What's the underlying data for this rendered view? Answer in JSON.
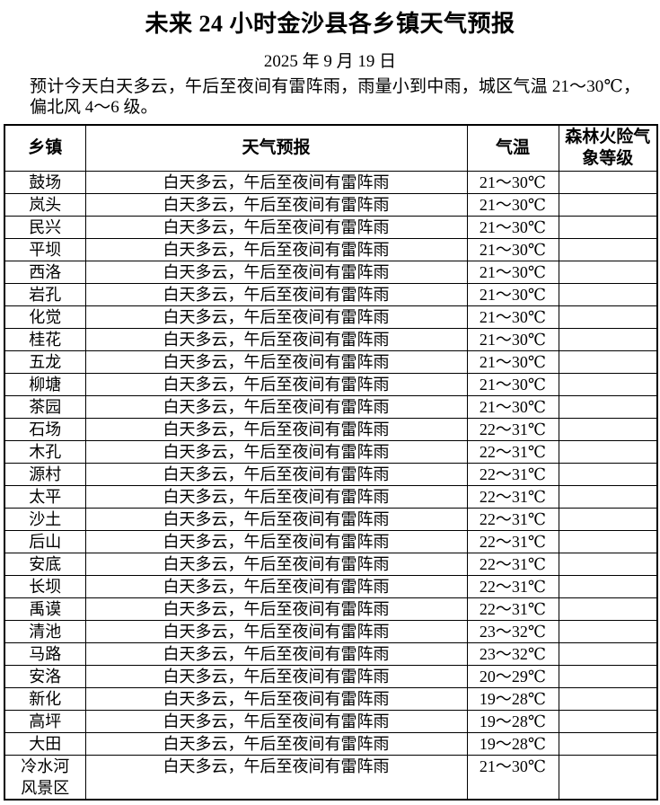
{
  "header": {
    "title": "未来 24 小时金沙县各乡镇天气预报",
    "date": "2025 年 9 月 19 日",
    "summary": "预计今天白天多云，午后至夜间有雷阵雨，雨量小到中雨，城区气温 21～30℃，偏北风 4～6 级。"
  },
  "colors": {
    "text": "#000000",
    "background": "#ffffff",
    "border": "#000000"
  },
  "table": {
    "headers": [
      "乡镇",
      "天气预报",
      "气温",
      "森林火险气象等级"
    ],
    "rows": [
      {
        "town": "鼓场",
        "forecast": "白天多云，午后至夜间有雷阵雨",
        "temp": "21～30℃",
        "fire": ""
      },
      {
        "town": "岚头",
        "forecast": "白天多云，午后至夜间有雷阵雨",
        "temp": "21～30℃",
        "fire": ""
      },
      {
        "town": "民兴",
        "forecast": "白天多云，午后至夜间有雷阵雨",
        "temp": "21～30℃",
        "fire": ""
      },
      {
        "town": "平坝",
        "forecast": "白天多云，午后至夜间有雷阵雨",
        "temp": "21～30℃",
        "fire": ""
      },
      {
        "town": "西洛",
        "forecast": "白天多云，午后至夜间有雷阵雨",
        "temp": "21～30℃",
        "fire": ""
      },
      {
        "town": "岩孔",
        "forecast": "白天多云，午后至夜间有雷阵雨",
        "temp": "21～30℃",
        "fire": ""
      },
      {
        "town": "化觉",
        "forecast": "白天多云，午后至夜间有雷阵雨",
        "temp": "21～30℃",
        "fire": ""
      },
      {
        "town": "桂花",
        "forecast": "白天多云，午后至夜间有雷阵雨",
        "temp": "21～30℃",
        "fire": ""
      },
      {
        "town": "五龙",
        "forecast": "白天多云，午后至夜间有雷阵雨",
        "temp": "21～30℃",
        "fire": ""
      },
      {
        "town": "柳塘",
        "forecast": "白天多云，午后至夜间有雷阵雨",
        "temp": "21～30℃",
        "fire": ""
      },
      {
        "town": "茶园",
        "forecast": "白天多云，午后至夜间有雷阵雨",
        "temp": "21～30℃",
        "fire": ""
      },
      {
        "town": "石场",
        "forecast": "白天多云，午后至夜间有雷阵雨",
        "temp": "22～31℃",
        "fire": ""
      },
      {
        "town": "木孔",
        "forecast": "白天多云，午后至夜间有雷阵雨",
        "temp": "22～31℃",
        "fire": ""
      },
      {
        "town": "源村",
        "forecast": "白天多云，午后至夜间有雷阵雨",
        "temp": "22～31℃",
        "fire": ""
      },
      {
        "town": "太平",
        "forecast": "白天多云，午后至夜间有雷阵雨",
        "temp": "22～31℃",
        "fire": ""
      },
      {
        "town": "沙土",
        "forecast": "白天多云，午后至夜间有雷阵雨",
        "temp": "22～31℃",
        "fire": ""
      },
      {
        "town": "后山",
        "forecast": "白天多云，午后至夜间有雷阵雨",
        "temp": "22～31℃",
        "fire": ""
      },
      {
        "town": "安底",
        "forecast": "白天多云，午后至夜间有雷阵雨",
        "temp": "22～31℃",
        "fire": ""
      },
      {
        "town": "长坝",
        "forecast": "白天多云，午后至夜间有雷阵雨",
        "temp": "22～31℃",
        "fire": ""
      },
      {
        "town": "禹谟",
        "forecast": "白天多云，午后至夜间有雷阵雨",
        "temp": "22～31℃",
        "fire": ""
      },
      {
        "town": "清池",
        "forecast": "白天多云，午后至夜间有雷阵雨",
        "temp": "23～32℃",
        "fire": ""
      },
      {
        "town": "马路",
        "forecast": "白天多云，午后至夜间有雷阵雨",
        "temp": "23～32℃",
        "fire": ""
      },
      {
        "town": "安洛",
        "forecast": "白天多云，午后至夜间有雷阵雨",
        "temp": "20～29℃",
        "fire": ""
      },
      {
        "town": "新化",
        "forecast": "白天多云，午后至夜间有雷阵雨",
        "temp": "19～28℃",
        "fire": ""
      },
      {
        "town": "高坪",
        "forecast": "白天多云，午后至夜间有雷阵雨",
        "temp": "19～28℃",
        "fire": ""
      },
      {
        "town": "大田",
        "forecast": "白天多云，午后至夜间有雷阵雨",
        "temp": "19～28℃",
        "fire": ""
      },
      {
        "town": "冷水河风景区",
        "forecast": "白天多云，午后至夜间有雷阵雨",
        "temp": "21～30℃",
        "fire": ""
      }
    ]
  }
}
